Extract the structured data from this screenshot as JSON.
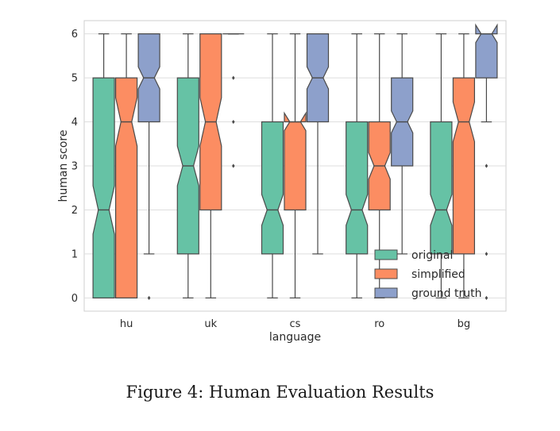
{
  "caption": "Figure 4: Human Evaluation Results",
  "chart_data": {
    "type": "box",
    "xlabel": "language",
    "ylabel": "human score",
    "ylim": [
      -0.3,
      6.3
    ],
    "yticks": [
      0,
      1,
      2,
      3,
      4,
      5,
      6
    ],
    "categories": [
      "hu",
      "uk",
      "cs",
      "ro",
      "bg"
    ],
    "grid": true,
    "notched": true,
    "legend_position": "lower-right",
    "series": [
      {
        "name": "original",
        "color": "#66c2a5",
        "boxes": [
          {
            "whisker_low": 0,
            "q1": 0,
            "median": 2,
            "q3": 5,
            "whisker_high": 6,
            "notch_low": 1.45,
            "notch_high": 2.55,
            "outliers": []
          },
          {
            "whisker_low": 0,
            "q1": 1,
            "median": 3,
            "q3": 5,
            "whisker_high": 6,
            "notch_low": 2.55,
            "notch_high": 3.45,
            "outliers": []
          },
          {
            "whisker_low": 0,
            "q1": 1,
            "median": 2,
            "q3": 4,
            "whisker_high": 6,
            "notch_low": 1.65,
            "notch_high": 2.35,
            "outliers": []
          },
          {
            "whisker_low": 0,
            "q1": 1,
            "median": 2,
            "q3": 4,
            "whisker_high": 6,
            "notch_low": 1.65,
            "notch_high": 2.35,
            "outliers": []
          },
          {
            "whisker_low": 0,
            "q1": 1,
            "median": 2,
            "q3": 4,
            "whisker_high": 6,
            "notch_low": 1.65,
            "notch_high": 2.35,
            "outliers": []
          }
        ]
      },
      {
        "name": "simplified",
        "color": "#fc8d62",
        "boxes": [
          {
            "whisker_low": 0,
            "q1": 0,
            "median": 4,
            "q3": 5,
            "whisker_high": 6,
            "notch_low": 3.45,
            "notch_high": 4.55,
            "outliers": []
          },
          {
            "whisker_low": 0,
            "q1": 2,
            "median": 4,
            "q3": 6,
            "whisker_high": 6,
            "notch_low": 3.45,
            "notch_high": 4.55,
            "outliers": []
          },
          {
            "whisker_low": 0,
            "q1": 2,
            "median": 4,
            "q3": 4,
            "whisker_high": 6,
            "notch_low": 3.8,
            "notch_high": 4.2,
            "outliers": []
          },
          {
            "whisker_low": 0,
            "q1": 2,
            "median": 3,
            "q3": 4,
            "whisker_high": 6,
            "notch_low": 2.7,
            "notch_high": 3.3,
            "outliers": []
          },
          {
            "whisker_low": 0,
            "q1": 1,
            "median": 4,
            "q3": 5,
            "whisker_high": 6,
            "notch_low": 3.55,
            "notch_high": 4.45,
            "outliers": []
          }
        ]
      },
      {
        "name": "ground truth",
        "color": "#8da0cb",
        "boxes": [
          {
            "whisker_low": 1,
            "q1": 4,
            "median": 5,
            "q3": 6,
            "whisker_high": 6,
            "notch_low": 4.75,
            "notch_high": 5.25,
            "outliers": [
              0
            ]
          },
          {
            "whisker_low": 6,
            "q1": 6,
            "median": 6,
            "q3": 6,
            "whisker_high": 6,
            "notch_low": 6,
            "notch_high": 6,
            "outliers": [
              5,
              4,
              3
            ]
          },
          {
            "whisker_low": 1,
            "q1": 4,
            "median": 5,
            "q3": 6,
            "whisker_high": 6,
            "notch_low": 4.75,
            "notch_high": 5.25,
            "outliers": []
          },
          {
            "whisker_low": 1,
            "q1": 3,
            "median": 4,
            "q3": 5,
            "whisker_high": 6,
            "notch_low": 3.75,
            "notch_high": 4.25,
            "outliers": []
          },
          {
            "whisker_low": 4,
            "q1": 5,
            "median": 6,
            "q3": 6,
            "whisker_high": 6,
            "notch_low": 5.8,
            "notch_high": 6.2,
            "outliers": [
              3,
              1,
              0
            ]
          }
        ]
      }
    ]
  }
}
